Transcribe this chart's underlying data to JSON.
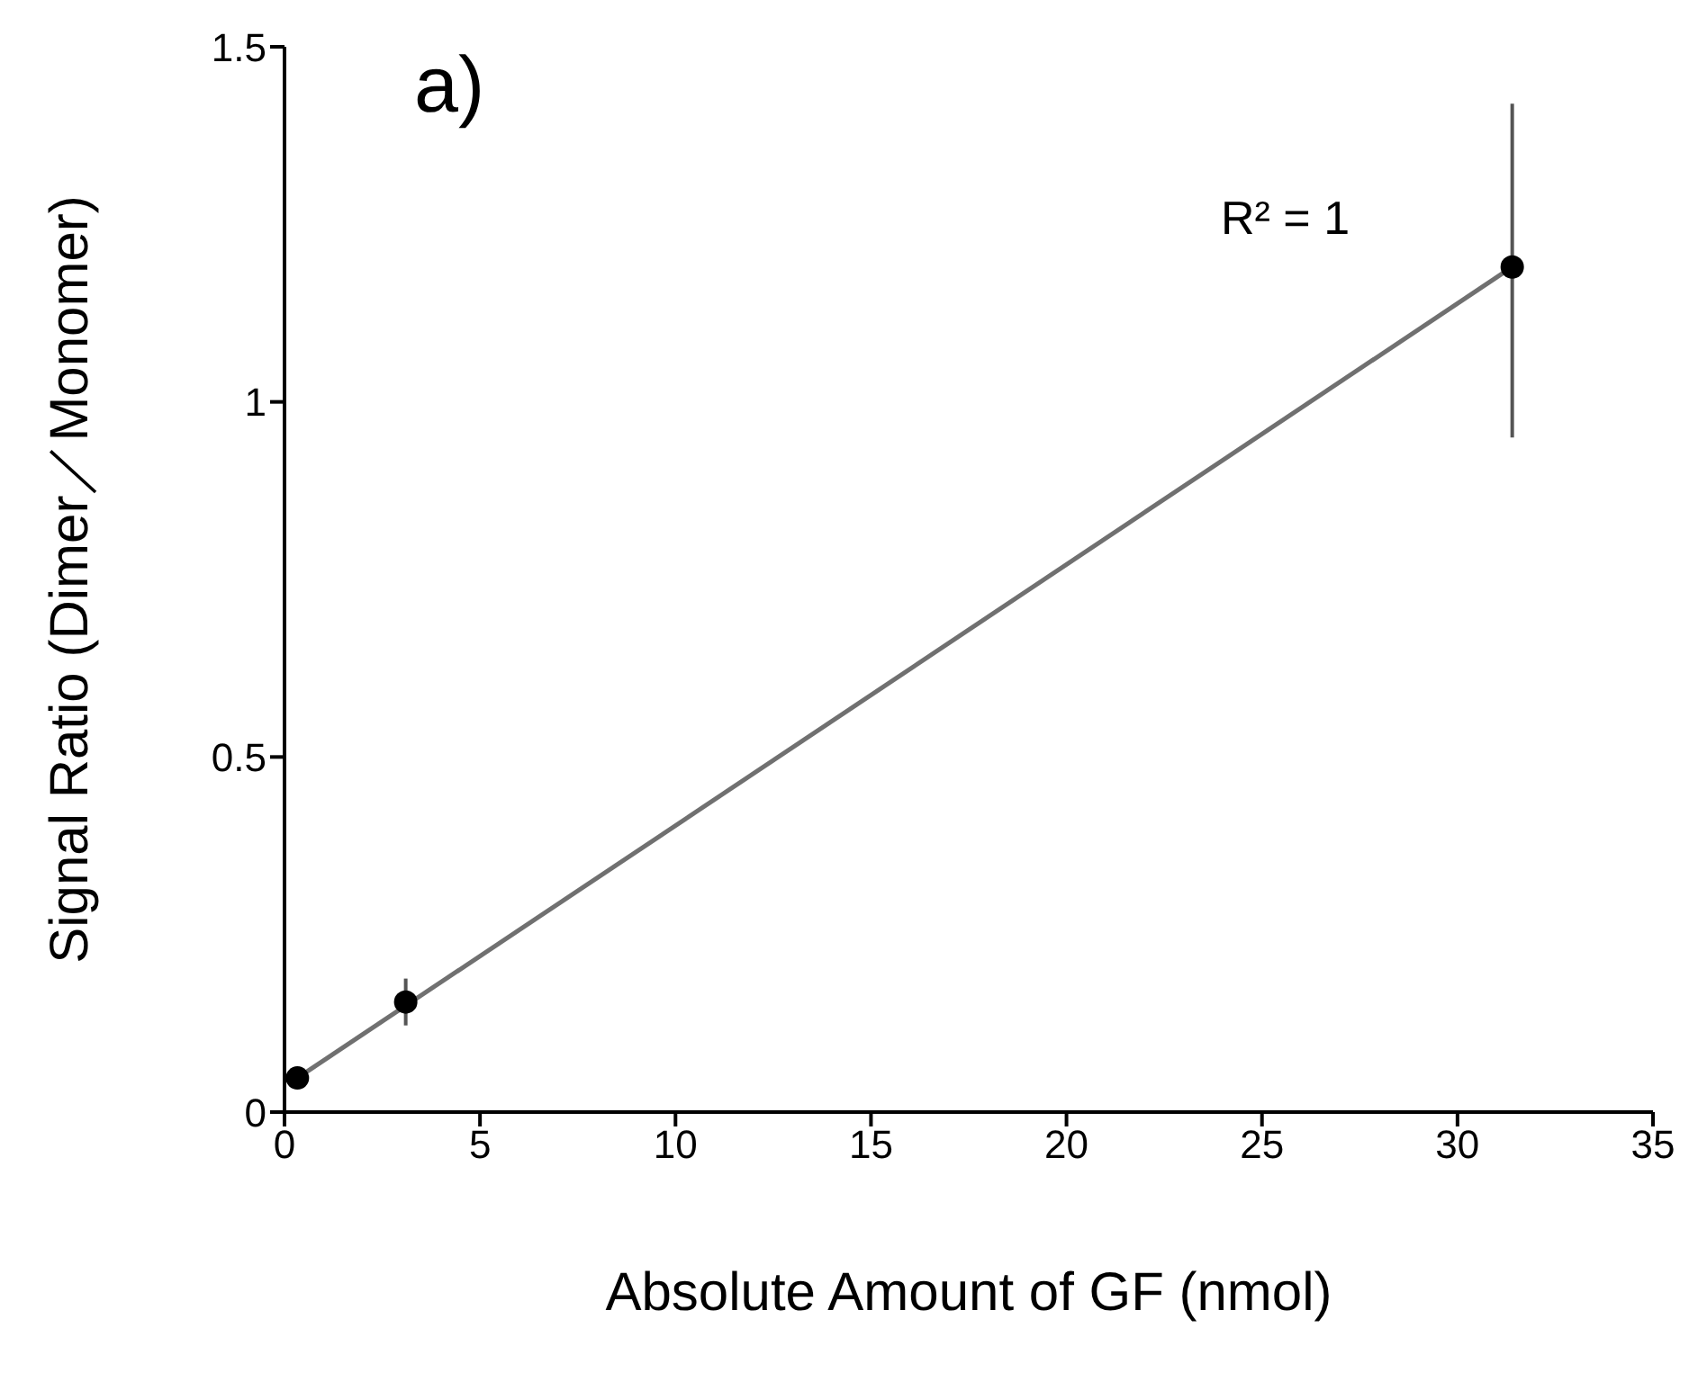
{
  "chart_data": {
    "type": "scatter",
    "xlabel": "Absolute Amount of GF (nmol)",
    "ylabel": "Signal Ratio (Dimer／Monomer)",
    "annotations": [
      "a)",
      "R² = 1"
    ],
    "xlim": [
      0,
      35
    ],
    "xticks": [
      0,
      5,
      10,
      15,
      20,
      25,
      30,
      35
    ],
    "ylim": [
      0,
      1.5
    ],
    "yticks": [
      0,
      0.5,
      1,
      1.5
    ],
    "grid": false,
    "legend": false,
    "marker": "circle",
    "series": [
      {
        "color": "#000000",
        "x": [
          0.33,
          3.1,
          31.4
        ],
        "values": [
          0.048,
          0.155,
          1.19
        ],
        "errors": [
          0.01,
          0.033,
          [
            0.95,
            1.42
          ]
        ]
      },
      {
        "type": "line",
        "color": "#707070",
        "x": [
          0.33,
          31.4
        ],
        "values": [
          0.048,
          1.19
        ],
        "marker": "none",
        "line_style": "solid"
      }
    ]
  }
}
